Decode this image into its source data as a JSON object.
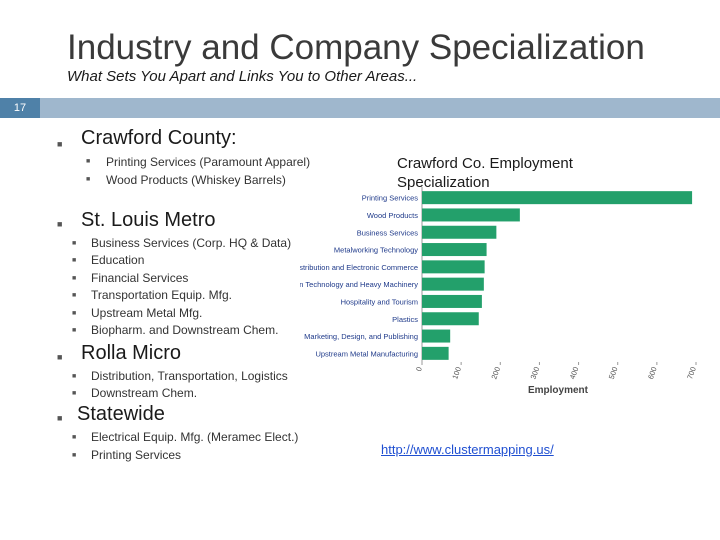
{
  "slide": {
    "title": "Industry and Company Specialization",
    "subtitle": "What Sets You Apart and Links You to Other Areas...",
    "number": "17"
  },
  "sections": [
    {
      "heading": "Crawford County:",
      "items": [
        "Printing Services (Paramount Apparel)",
        "Wood Products (Whiskey Barrels)"
      ]
    },
    {
      "heading": "St. Louis Metro",
      "items": [
        "Business Services (Corp. HQ & Data)",
        "Education",
        "Financial Services",
        "Transportation Equip. Mfg.",
        "Upstream Metal Mfg.",
        "Biopharm. and Downstream Chem."
      ]
    },
    {
      "heading": "Rolla Micro",
      "items": [
        "Distribution, Transportation, Logistics",
        "Downstream Chem."
      ]
    },
    {
      "heading": "Statewide",
      "items": [
        "Electrical Equip. Mfg. (Meramec Elect.)",
        "Printing Services"
      ]
    }
  ],
  "chart_title": "Crawford Co. Employment Specialization",
  "link": "http://www.clustermapping.us/",
  "chart_data": {
    "type": "bar",
    "orientation": "horizontal",
    "title": "Crawford Co. Employment Specialization",
    "xlabel": "Employment",
    "ylabel": "",
    "xlim": [
      0,
      700
    ],
    "xticks": [
      0,
      100,
      200,
      300,
      400,
      500,
      600,
      700
    ],
    "categories": [
      "Printing Services",
      "Wood Products",
      "Business Services",
      "Metalworking Technology",
      "Distribution and Electronic Commerce",
      "Production Technology and Heavy Machinery",
      "Hospitality and Tourism",
      "Plastics",
      "Marketing, Design, and Publishing",
      "Upstream Metal Manufacturing"
    ],
    "values": [
      690,
      250,
      190,
      165,
      160,
      158,
      153,
      145,
      72,
      68
    ],
    "bar_color": "#23a06b",
    "grid": false
  }
}
